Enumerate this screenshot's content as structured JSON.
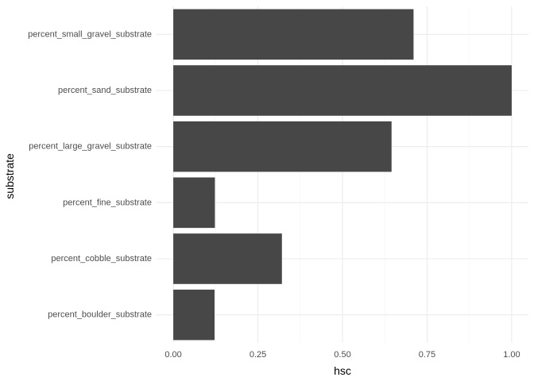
{
  "chart_data": {
    "type": "bar",
    "orientation": "horizontal",
    "xlabel": "hsc",
    "ylabel": "substrate",
    "xlim": [
      -0.0495,
      1.0495
    ],
    "x_ticks": [
      0.0,
      0.25,
      0.5,
      0.75,
      1.0
    ],
    "x_tick_labels": [
      "0.00",
      "0.25",
      "0.50",
      "0.75",
      "1.00"
    ],
    "categories": [
      "percent_small_gravel_substrate",
      "percent_sand_substrate",
      "percent_large_gravel_substrate",
      "percent_fine_substrate",
      "percent_cobble_substrate",
      "percent_boulder_substrate"
    ],
    "values": [
      0.71,
      1.0,
      0.645,
      0.123,
      0.321,
      0.122
    ],
    "grid": true,
    "legend": "none",
    "colors": {
      "bar": "#474747",
      "grid_major": "#ebebeb",
      "grid_minor": "#f5f5f5",
      "background": "#ffffff"
    }
  }
}
